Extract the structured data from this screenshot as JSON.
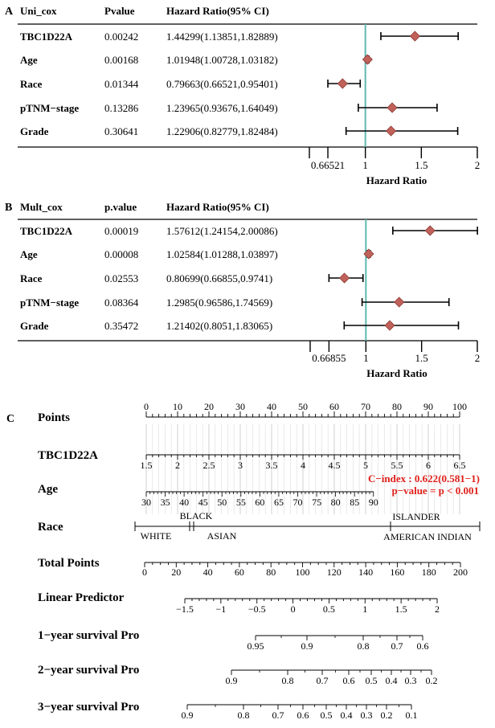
{
  "chart_data": [
    {
      "type": "forest",
      "panel_label": "A",
      "headers": {
        "variable": "Uni_cox",
        "p": "Pvalue",
        "hr": "Hazard Ratio(95% CI)"
      },
      "rows": [
        {
          "name": "TBC1D22A",
          "p": "0.00242",
          "hr_text": "1.44299(1.13851,1.82889)",
          "hr": 1.44299,
          "lo": 1.13851,
          "hi": 1.82889
        },
        {
          "name": "Age",
          "p": "0.00168",
          "hr_text": "1.01948(1.00728,1.03182)",
          "hr": 1.01948,
          "lo": 1.00728,
          "hi": 1.03182
        },
        {
          "name": "Race",
          "p": "0.01344",
          "hr_text": "0.79663(0.66521,0.95401)",
          "hr": 0.79663,
          "lo": 0.66521,
          "hi": 0.95401
        },
        {
          "name": "pTNM−stage",
          "p": "0.13286",
          "hr_text": "1.23965(0.93676,1.64049)",
          "hr": 1.23965,
          "lo": 0.93676,
          "hi": 1.64049
        },
        {
          "name": "Grade",
          "p": "0.30641",
          "hr_text": "1.22906(0.82779,1.82484)",
          "hr": 1.22906,
          "lo": 0.82779,
          "hi": 1.82484
        }
      ],
      "xlim": [
        0.5,
        2
      ],
      "x_ticks": [
        0.5,
        0.66521,
        1,
        1.5,
        2
      ],
      "x_tick_labels": [
        "",
        "0.66521",
        "1",
        "1.5",
        "2"
      ],
      "xlabel": "Hazard Ratio",
      "reference": 1
    },
    {
      "type": "forest",
      "panel_label": "B",
      "headers": {
        "variable": "Mult_cox",
        "p": "p.value",
        "hr": "Hazard Ratio(95% CI)"
      },
      "rows": [
        {
          "name": "TBC1D22A",
          "p": "0.00019",
          "hr_text": "1.57612(1.24154,2.00086)",
          "hr": 1.57612,
          "lo": 1.24154,
          "hi": 2.00086
        },
        {
          "name": "Age",
          "p": "0.00008",
          "hr_text": "1.02584(1.01288,1.03897)",
          "hr": 1.02584,
          "lo": 1.01288,
          "hi": 1.03897
        },
        {
          "name": "Race",
          "p": "0.02553",
          "hr_text": "0.80699(0.66855,0.9741)",
          "hr": 0.80699,
          "lo": 0.66855,
          "hi": 0.9741
        },
        {
          "name": "pTNM−stage",
          "p": "0.08364",
          "hr_text": "1.2985(0.96586,1.74569)",
          "hr": 1.2985,
          "lo": 0.96586,
          "hi": 1.74569
        },
        {
          "name": "Grade",
          "p": "0.35472",
          "hr_text": "1.21402(0.8051,1.83065)",
          "hr": 1.21402,
          "lo": 0.8051,
          "hi": 1.83065
        }
      ],
      "xlim": [
        0.5,
        2
      ],
      "x_ticks": [
        0.5,
        0.66855,
        1,
        1.5,
        2
      ],
      "x_tick_labels": [
        "",
        "0.66855",
        "1",
        "1.5",
        "2"
      ],
      "xlabel": "Hazard Ratio",
      "reference": 1
    },
    {
      "type": "nomogram",
      "panel_label": "C",
      "annotation": {
        "cindex": "C−index : 0.622(0.581−1)",
        "pvalue": "p−value = p < 0.001"
      },
      "scales": [
        {
          "label": "Points",
          "ticks": [
            "0",
            "10",
            "20",
            "30",
            "40",
            "50",
            "60",
            "70",
            "80",
            "90",
            "100"
          ]
        },
        {
          "label": "TBC1D22A",
          "ticks": [
            "1.5",
            "2",
            "2.5",
            "3",
            "3.5",
            "4",
            "4.5",
            "5",
            "5.5",
            "6",
            "6.5"
          ]
        },
        {
          "label": "Age",
          "ticks": [
            "30",
            "35",
            "40",
            "45",
            "50",
            "55",
            "60",
            "65",
            "70",
            "75",
            "80",
            "85",
            "90"
          ]
        },
        {
          "label": "Race",
          "above": [
            "BLACK",
            "ISLANDER"
          ],
          "below": [
            "WHITE",
            "ASIAN",
            "AMERICAN INDIAN"
          ]
        },
        {
          "label": "Total Points",
          "ticks": [
            "0",
            "20",
            "40",
            "60",
            "80",
            "100",
            "120",
            "140",
            "160",
            "180",
            "200"
          ]
        },
        {
          "label": "Linear Predictor",
          "ticks": [
            "−1.5",
            "−1",
            "−0.5",
            "0",
            "0.5",
            "1",
            "1.5",
            "2"
          ]
        },
        {
          "label": "1−year survival Pro",
          "ticks": [
            "0.95",
            "0.9",
            "0.8",
            "0.7",
            "0.6"
          ]
        },
        {
          "label": "2−year survival Pro",
          "ticks": [
            "0.9",
            "0.8",
            "0.7",
            "0.6",
            "0.5",
            "0.4",
            "0.3",
            "0.2"
          ]
        },
        {
          "label": "3−year survival Pro",
          "ticks": [
            "0.9",
            "0.8",
            "0.7",
            "0.6",
            "0.5",
            "0.4",
            "0.3",
            "0.2",
            "0.1"
          ]
        }
      ]
    }
  ],
  "colors": {
    "marker": "#c0615a",
    "marker_edge": "#8b3a35",
    "reference": "#5fb8b0",
    "annotation": "#e0201b"
  }
}
